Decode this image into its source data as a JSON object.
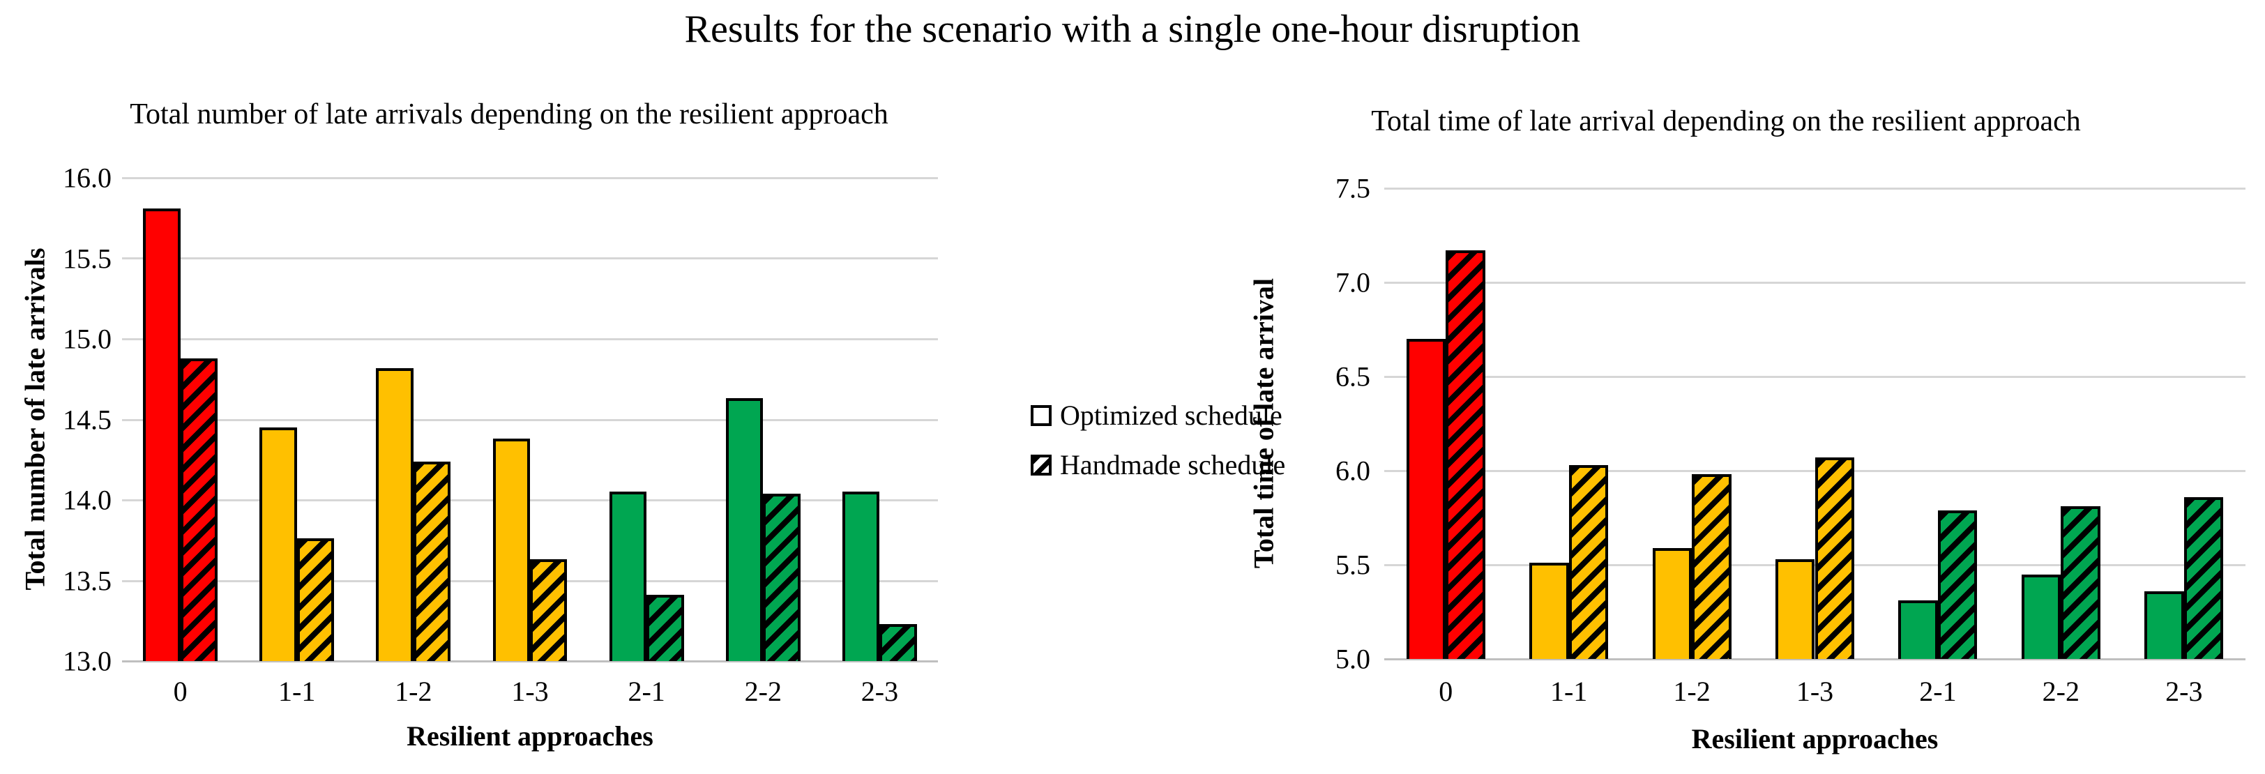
{
  "page_title": "Results for the scenario with a single one-hour disruption",
  "legend": {
    "optimized_label": "Optimized schedule",
    "handmade_label": "Handmade schedule"
  },
  "colors": {
    "red": "#ff0000",
    "yellow": "#ffc000",
    "green": "#00a651",
    "bar_border": "#000000",
    "gridline": "#d6d6d6",
    "axis_line": "#bfbfbf"
  },
  "chart_data": [
    {
      "id": "total-late-arrivals",
      "type": "bar",
      "title": "Total number of late arrivals depending on the resilient approach",
      "xlabel": "Resilient approaches",
      "ylabel": "Total number of late arrivals",
      "ylim": [
        13.0,
        16.0
      ],
      "ytick_labels": [
        "16.0",
        "15.5",
        "15.0",
        "14.5",
        "14.0",
        "13.5",
        "13.0"
      ],
      "grid": true,
      "legend_position": "shared-center",
      "categories": [
        "0",
        "1-1",
        "1-2",
        "1-3",
        "2-1",
        "2-2",
        "2-3"
      ],
      "bar_colors": [
        "red",
        "yellow",
        "yellow",
        "yellow",
        "green",
        "green",
        "green"
      ],
      "series": [
        {
          "name": "Optimized schedule",
          "style": "solid",
          "values": [
            15.81,
            14.45,
            14.82,
            14.38,
            14.05,
            14.63,
            14.05
          ]
        },
        {
          "name": "Handmade schedule",
          "style": "hatched",
          "values": [
            14.88,
            13.76,
            14.24,
            13.63,
            13.41,
            14.04,
            13.23
          ]
        }
      ]
    },
    {
      "id": "total-late-arrival-time",
      "type": "bar",
      "title": "Total time of late arrival depending on the resilient approach",
      "xlabel": "Resilient approaches",
      "ylabel": "Total time of late arrival",
      "ylim": [
        5.0,
        7.5
      ],
      "ytick_labels": [
        "7.5",
        "7.0",
        "6.5",
        "6.0",
        "5.5",
        "5.0"
      ],
      "grid": true,
      "legend_position": "shared-center",
      "categories": [
        "0",
        "1-1",
        "1-2",
        "1-3",
        "2-1",
        "2-2",
        "2-3"
      ],
      "bar_colors": [
        "red",
        "yellow",
        "yellow",
        "yellow",
        "green",
        "green",
        "green"
      ],
      "series": [
        {
          "name": "Optimized schedule",
          "style": "solid",
          "values": [
            6.7,
            5.51,
            5.59,
            5.53,
            5.31,
            5.45,
            5.36
          ]
        },
        {
          "name": "Handmade schedule",
          "style": "hatched",
          "values": [
            7.17,
            6.03,
            5.98,
            6.07,
            5.79,
            5.81,
            5.86
          ]
        }
      ]
    }
  ]
}
